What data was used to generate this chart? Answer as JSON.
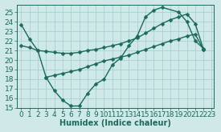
{
  "line1_x": [
    0,
    1,
    2,
    3,
    4,
    5,
    6,
    7,
    8,
    9,
    10,
    11,
    12,
    13,
    14,
    15,
    16,
    17,
    19,
    20,
    21,
    22
  ],
  "line1_y": [
    23.7,
    22.2,
    21.0,
    18.2,
    16.8,
    15.8,
    15.2,
    15.2,
    16.5,
    17.5,
    18.0,
    19.5,
    20.2,
    21.5,
    22.5,
    24.5,
    25.2,
    25.5,
    25.0,
    24.0,
    22.0,
    21.2
  ],
  "line2_x": [
    0,
    1,
    2,
    3,
    4,
    5,
    6,
    7,
    8,
    9,
    10,
    11,
    12,
    13,
    14,
    15,
    16,
    17,
    18,
    19,
    20,
    21,
    22
  ],
  "line2_y": [
    21.5,
    21.3,
    21.0,
    20.9,
    20.8,
    20.7,
    20.7,
    20.8,
    21.0,
    21.1,
    21.3,
    21.5,
    21.7,
    22.0,
    22.3,
    22.8,
    23.3,
    23.8,
    24.2,
    24.5,
    24.8,
    23.8,
    21.1
  ],
  "line3_x": [
    3,
    4,
    5,
    6,
    7,
    8,
    9,
    10,
    11,
    12,
    13,
    14,
    15,
    16,
    17,
    18,
    19,
    20,
    21,
    22
  ],
  "line3_y": [
    18.2,
    18.4,
    18.6,
    18.8,
    19.0,
    19.3,
    19.6,
    19.9,
    20.1,
    20.3,
    20.5,
    20.8,
    21.1,
    21.4,
    21.7,
    22.0,
    22.2,
    22.5,
    22.7,
    21.1
  ],
  "color": "#1a6b5a",
  "bg_color": "#cfe8e8",
  "grid_color": "#aacfcf",
  "xlabel": "Humidex (Indice chaleur)",
  "ylim": [
    15,
    25.8
  ],
  "xlim": [
    -0.5,
    23.2
  ],
  "yticks": [
    15,
    16,
    17,
    18,
    19,
    20,
    21,
    22,
    23,
    24,
    25
  ],
  "xticks": [
    0,
    1,
    2,
    3,
    4,
    5,
    6,
    7,
    8,
    9,
    10,
    11,
    12,
    13,
    14,
    15,
    16,
    17,
    18,
    19,
    20,
    21,
    22,
    23
  ],
  "markersize": 2.5,
  "linewidth": 1.0,
  "font_size": 6.5
}
